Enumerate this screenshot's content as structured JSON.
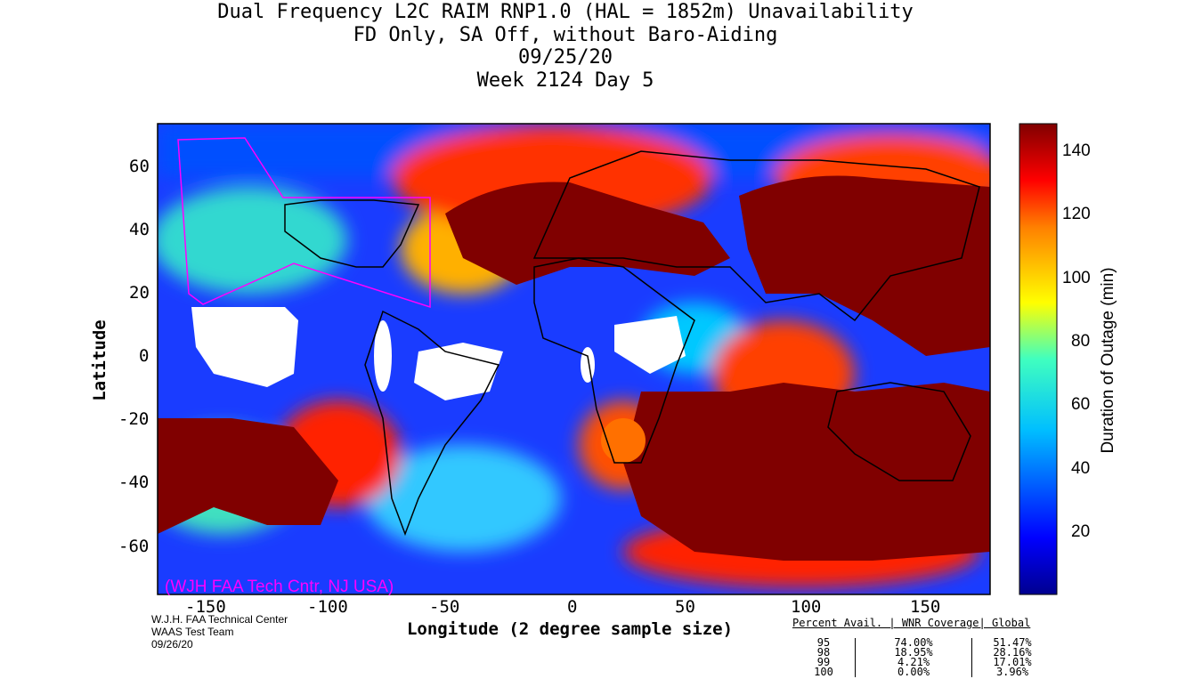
{
  "title": {
    "line1": "Dual Frequency L2C RAIM RNP1.0 (HAL = 1852m) Unavailability",
    "line2": "FD Only, SA Off, without Baro-Aiding",
    "line3": "09/25/20",
    "line4": "Week 2124 Day 5"
  },
  "axes": {
    "xlabel": "Longitude (2 degree sample size)",
    "ylabel": "Latitude",
    "xticks": [
      "-150",
      "-100",
      "-50",
      "0",
      "50",
      "100",
      "150"
    ],
    "yticks": [
      "60",
      "40",
      "20",
      "0",
      "-20",
      "-40",
      "-60"
    ],
    "lon_range": [
      -172,
      172
    ],
    "lat_range": [
      -75,
      74
    ]
  },
  "colorbar": {
    "label": "Duration of Outage (min)",
    "ticks": [
      "140",
      "120",
      "100",
      "80",
      "60",
      "40",
      "20"
    ],
    "range": [
      0,
      149
    ],
    "colors": [
      "#00008f",
      "#0000ff",
      "#00bfff",
      "#40ffbf",
      "#ffff00",
      "#ff8000",
      "#ff0000",
      "#800000"
    ]
  },
  "watermark": "(WJH FAA Tech Cntr, NJ USA)",
  "footer": {
    "org": "W.J.H. FAA Technical Center",
    "team": "WAAS Test Team",
    "date": "09/26/20"
  },
  "stats": {
    "header": "Percent Avail. | WNR Coverage| Global",
    "rows": [
      {
        "pct": "95",
        "wnr": "74.00%",
        "global": "51.47%"
      },
      {
        "pct": "98",
        "wnr": "18.95%",
        "global": "28.16%"
      },
      {
        "pct": "99",
        "wnr": "4.21%",
        "global": "17.01%"
      },
      {
        "pct": "100",
        "wnr": "0.00%",
        "global": "3.96%"
      }
    ]
  }
}
